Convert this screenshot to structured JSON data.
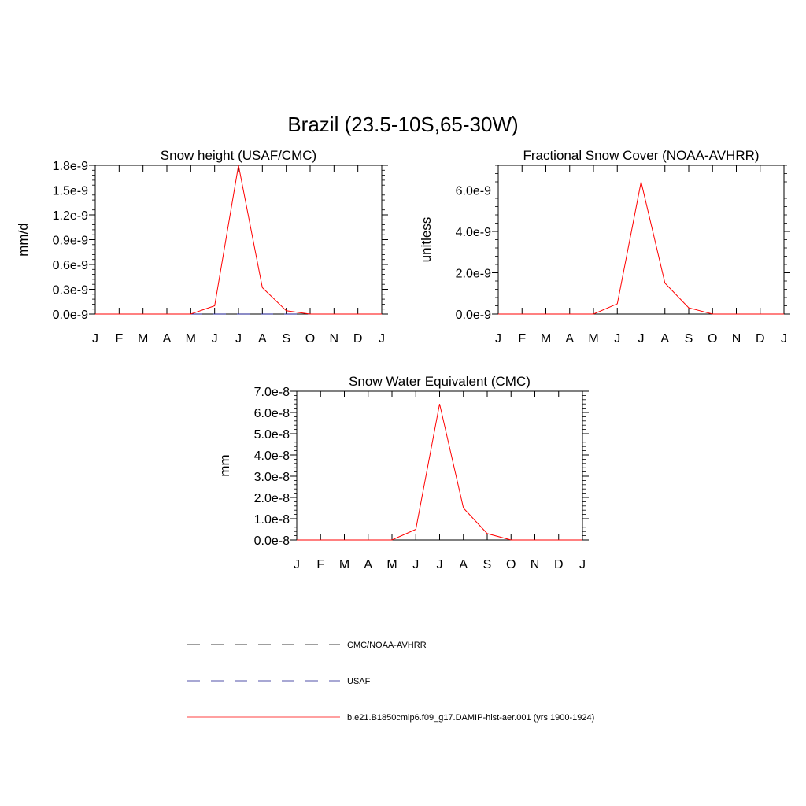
{
  "figure": {
    "title": "Brazil (23.5-10S,65-30W)"
  },
  "legend": {
    "entries": [
      {
        "label": "CMC/NOAA-AVHRR",
        "color": "#000000",
        "style": "dashed"
      },
      {
        "label": "USAF",
        "color": "#1a1a8c",
        "style": "dashed"
      },
      {
        "label": "b.e21.B1850cmip6.f09_g17.DAMIP-hist-aer.001 (yrs 1900-1924)",
        "color": "#ff0000",
        "style": "solid"
      }
    ]
  },
  "chart_data": [
    {
      "type": "line",
      "title": "Snow height (USAF/CMC)",
      "xlabel": "",
      "ylabel": "mm/d",
      "categories": [
        "J",
        "F",
        "M",
        "A",
        "M",
        "J",
        "J",
        "A",
        "S",
        "O",
        "N",
        "D",
        "J"
      ],
      "ylim": [
        0,
        1.8e-09
      ],
      "yticks": [
        0,
        3e-10,
        6e-10,
        9e-10,
        1.2e-09,
        1.5e-09,
        1.8e-09
      ],
      "yticklabels": [
        "0.0e-9",
        "0.3e-9",
        "0.6e-9",
        "0.9e-9",
        "1.2e-9",
        "1.5e-9",
        "1.8e-9"
      ],
      "series": [
        {
          "values": [
            0,
            0,
            0,
            0,
            0,
            0,
            0,
            0,
            0,
            0,
            0,
            0,
            0
          ],
          "color": "#000000",
          "dash": true
        },
        {
          "values": [
            0,
            0,
            0,
            0,
            0,
            0,
            0,
            0,
            0,
            0,
            0,
            0,
            0
          ],
          "color": "#1a1a8c",
          "dash": true
        },
        {
          "values": [
            0,
            0,
            0,
            0,
            0,
            1e-10,
            1.8e-09,
            3.2e-10,
            4e-11,
            0,
            0,
            0,
            0
          ],
          "color": "#ff0000",
          "dash": false
        }
      ]
    },
    {
      "type": "line",
      "title": "Fractional Snow Cover (NOAA-AVHRR)",
      "xlabel": "",
      "ylabel": "unitless",
      "categories": [
        "J",
        "F",
        "M",
        "A",
        "M",
        "J",
        "J",
        "A",
        "S",
        "O",
        "N",
        "D",
        "J"
      ],
      "ylim": [
        0,
        7.2e-09
      ],
      "yticks": [
        0,
        2e-09,
        4e-09,
        6e-09
      ],
      "yticklabels": [
        "0.0e-9",
        "2.0e-9",
        "4.0e-9",
        "6.0e-9"
      ],
      "series": [
        {
          "values": [
            0,
            0,
            0,
            0,
            0,
            0,
            0,
            0,
            0,
            0,
            0,
            0,
            0
          ],
          "color": "#000000",
          "dash": true
        },
        {
          "values": [
            0,
            0,
            0,
            0,
            0,
            5e-10,
            6.4e-09,
            1.5e-09,
            3e-10,
            0,
            0,
            0,
            0
          ],
          "color": "#ff0000",
          "dash": false
        }
      ]
    },
    {
      "type": "line",
      "title": "Snow Water Equivalent (CMC)",
      "xlabel": "",
      "ylabel": "mm",
      "categories": [
        "J",
        "F",
        "M",
        "A",
        "M",
        "J",
        "J",
        "A",
        "S",
        "O",
        "N",
        "D",
        "J"
      ],
      "ylim": [
        0,
        7e-08
      ],
      "yticks": [
        0,
        1e-08,
        2e-08,
        3e-08,
        4e-08,
        5e-08,
        6e-08,
        7e-08
      ],
      "yticklabels": [
        "0.0e-8",
        "1.0e-8",
        "2.0e-8",
        "3.0e-8",
        "4.0e-8",
        "5.0e-8",
        "6.0e-8",
        "7.0e-8"
      ],
      "series": [
        {
          "values": [
            0,
            0,
            0,
            0,
            0,
            0,
            0,
            0,
            0,
            0,
            0,
            0,
            0
          ],
          "color": "#000000",
          "dash": true
        },
        {
          "values": [
            0,
            0,
            0,
            0,
            0,
            5e-09,
            6.4e-08,
            1.5e-08,
            3e-09,
            0,
            0,
            0,
            0
          ],
          "color": "#ff0000",
          "dash": false
        }
      ]
    }
  ]
}
